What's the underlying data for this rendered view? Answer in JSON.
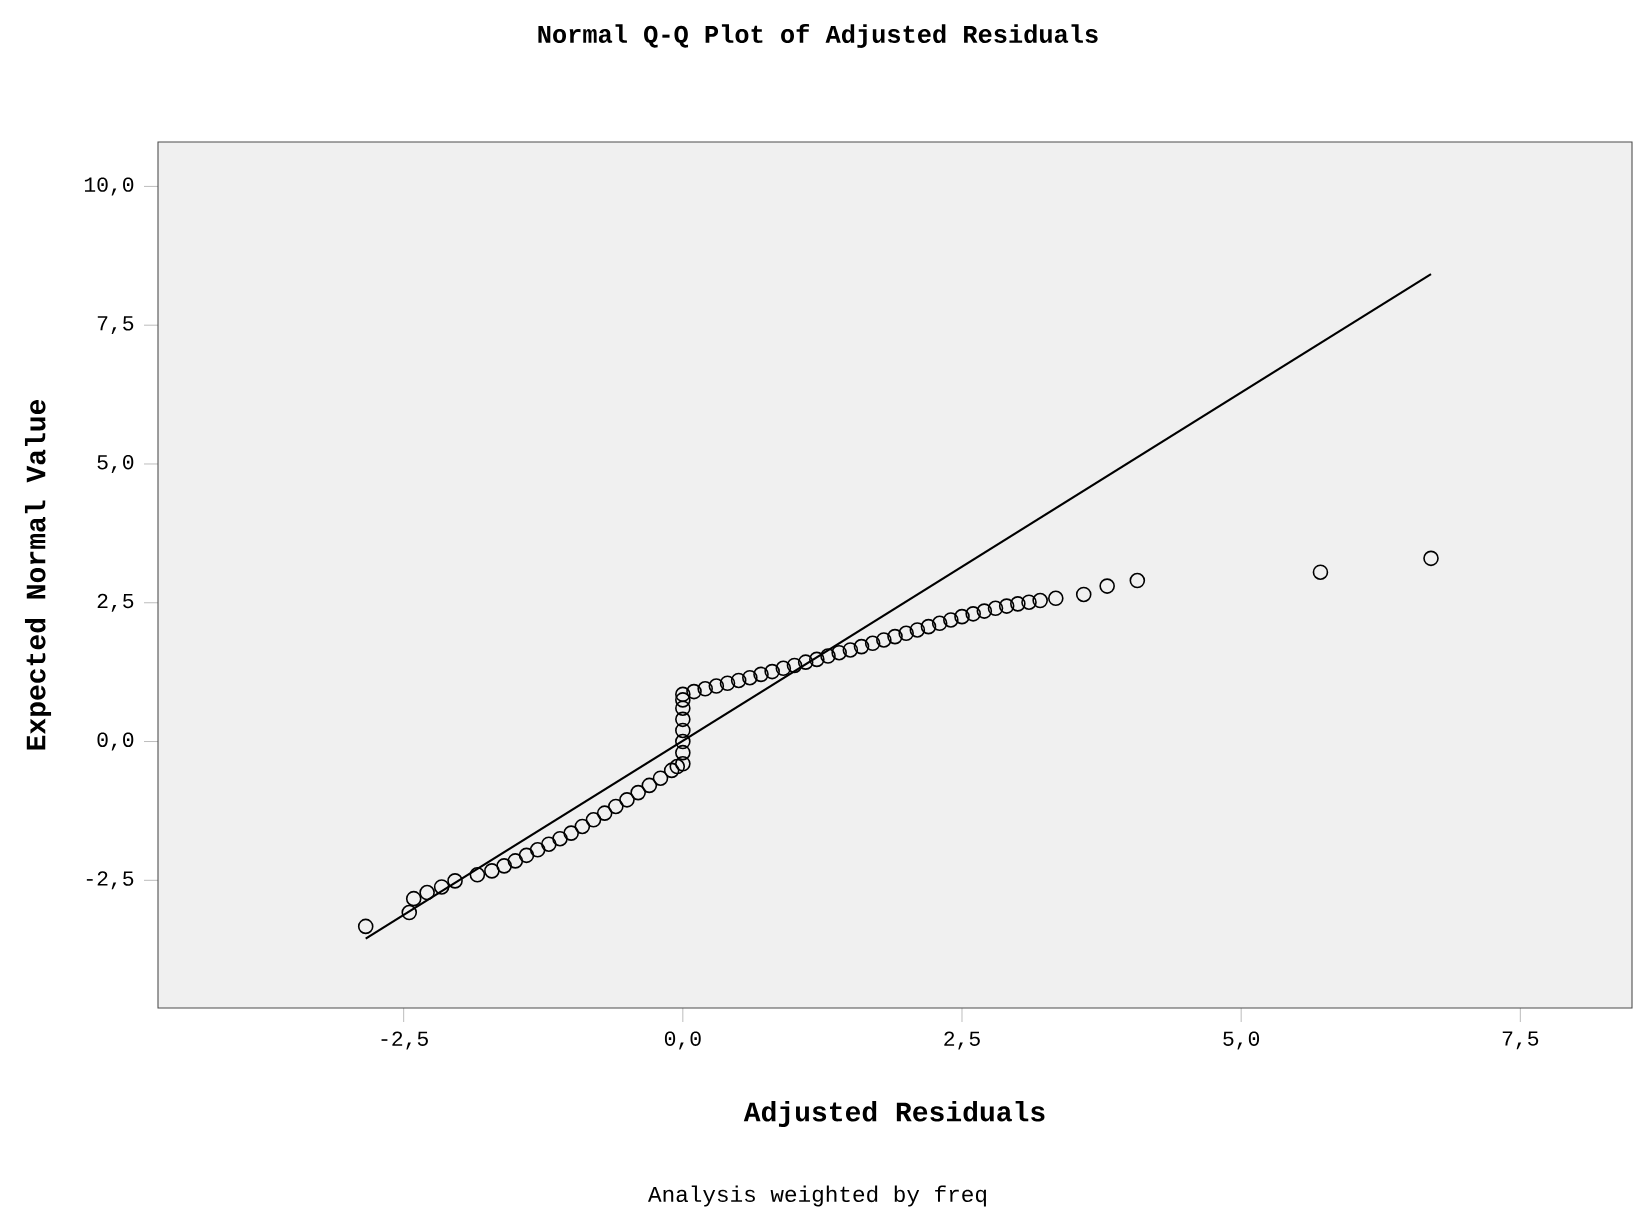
{
  "chart_data": {
    "type": "scatter",
    "title": "Normal Q-Q Plot of Adjusted Residuals",
    "xlabel": "Adjusted Residuals",
    "ylabel": "Expected Normal Value",
    "annotations": [
      "Analysis weighted by freq"
    ],
    "xlim": [
      -4.7,
      8.5
    ],
    "ylim": [
      -4.8,
      10.8
    ],
    "xticks": [
      {
        "value": -2.5,
        "label": "-2,5"
      },
      {
        "value": 0,
        "label": "0,0"
      },
      {
        "value": 2.5,
        "label": "2,5"
      },
      {
        "value": 5,
        "label": "5,0"
      },
      {
        "value": 7.5,
        "label": "7,5"
      }
    ],
    "yticks": [
      {
        "value": -2.5,
        "label": "-2,5"
      },
      {
        "value": 0,
        "label": "0,0"
      },
      {
        "value": 2.5,
        "label": "2,5"
      },
      {
        "value": 5,
        "label": "5,0"
      },
      {
        "value": 7.5,
        "label": "7,5"
      },
      {
        "value": 10,
        "label": "10,0"
      }
    ],
    "marker": "circle",
    "series": [
      {
        "color": "#000000",
        "x": [
          -2.84,
          -2.45,
          -2.41,
          -2.29,
          -2.16,
          -2.04,
          -1.84,
          -1.71,
          -1.6,
          -1.5,
          -1.4,
          -1.3,
          -1.2,
          -1.1,
          -1.0,
          -0.9,
          -0.8,
          -0.7,
          -0.6,
          -0.5,
          -0.4,
          -0.3,
          -0.2,
          -0.1,
          -0.05,
          0.0,
          0.0,
          0.0,
          0.0,
          0.0,
          0.0,
          0.0,
          0.0,
          0.1,
          0.2,
          0.3,
          0.4,
          0.5,
          0.6,
          0.7,
          0.8,
          0.9,
          1.0,
          1.1,
          1.2,
          1.3,
          1.4,
          1.5,
          1.6,
          1.7,
          1.8,
          1.9,
          2.0,
          2.1,
          2.2,
          2.3,
          2.4,
          2.5,
          2.6,
          2.7,
          2.8,
          2.9,
          3.0,
          3.1,
          3.2,
          3.34,
          3.59,
          3.8,
          4.07,
          5.71,
          6.7
        ],
        "values": [
          -3.33,
          -3.08,
          -2.83,
          -2.72,
          -2.62,
          -2.51,
          -2.4,
          -2.33,
          -2.24,
          -2.15,
          -2.05,
          -1.95,
          -1.85,
          -1.75,
          -1.65,
          -1.53,
          -1.41,
          -1.29,
          -1.17,
          -1.05,
          -0.92,
          -0.79,
          -0.66,
          -0.52,
          -0.45,
          -0.4,
          -0.2,
          0.0,
          0.2,
          0.4,
          0.6,
          0.75,
          0.85,
          0.9,
          0.95,
          1.0,
          1.05,
          1.1,
          1.15,
          1.21,
          1.26,
          1.32,
          1.37,
          1.43,
          1.48,
          1.54,
          1.6,
          1.65,
          1.71,
          1.77,
          1.83,
          1.89,
          1.95,
          2.01,
          2.07,
          2.13,
          2.19,
          2.25,
          2.3,
          2.35,
          2.4,
          2.44,
          2.48,
          2.51,
          2.54,
          2.58,
          2.65,
          2.8,
          2.9,
          3.05,
          3.3
        ]
      },
      {
        "type": "line",
        "color": "#000000",
        "marker": "none",
        "x": [
          -2.84,
          6.7
        ],
        "values": [
          -3.55,
          8.42
        ]
      }
    ]
  }
}
